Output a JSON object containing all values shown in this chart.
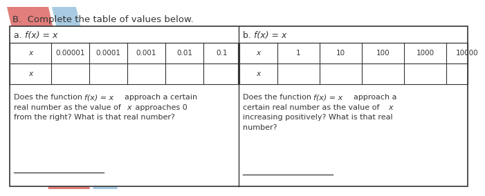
{
  "title": "B.  Complete the table of values below.",
  "section_a_label_prefix": "a. ",
  "section_a_label_italic": "f(x) = x",
  "section_b_label_prefix": "b. ",
  "section_b_label_italic": "f(x) = x",
  "table_a_headers": [
    "x",
    "0.00001",
    "0.0001",
    "0.001",
    "0.01",
    "0.1"
  ],
  "table_b_headers": [
    "x",
    "1",
    "10",
    "100",
    "1000",
    "10000"
  ],
  "bg_color": "#ffffff",
  "border_color": "#333333",
  "text_color": "#333333",
  "red_stripe_color": "#d9534f",
  "blue_stripe_color": "#7bafd4",
  "title_fontsize": 9.5,
  "label_fontsize": 9.0,
  "table_fontsize": 7.5,
  "body_fontsize": 8.0
}
